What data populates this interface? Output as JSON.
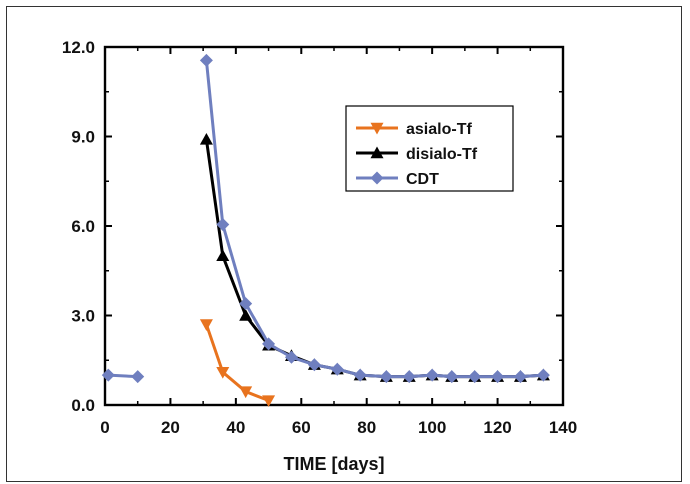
{
  "chart_data": {
    "type": "line",
    "title": "",
    "xlabel": "TIME [days]",
    "ylabel": "",
    "xlim": [
      0,
      140
    ],
    "ylim": [
      0,
      12
    ],
    "xticks": [
      0,
      20,
      40,
      60,
      80,
      100,
      120,
      140
    ],
    "yticks": [
      0,
      3,
      6,
      9,
      12
    ],
    "xtick_labels": [
      "0",
      "20",
      "40",
      "60",
      "80",
      "100",
      "120",
      "140"
    ],
    "ytick_labels": [
      "0.0",
      "3.0",
      "6.0",
      "9.0",
      "12.0"
    ],
    "grid": false,
    "legend_position": "top-right",
    "series": [
      {
        "name": "asialo-Tf",
        "color": "#e8731e",
        "marker": "triangle-down",
        "points": [
          [
            31,
            2.7
          ],
          [
            36,
            1.1
          ],
          [
            43,
            0.45
          ],
          [
            50,
            0.15
          ]
        ]
      },
      {
        "name": "disialo-Tf",
        "color": "#000000",
        "marker": "triangle-up",
        "points": [
          [
            31,
            8.9
          ],
          [
            36,
            5.0
          ],
          [
            43,
            3.0
          ],
          [
            50,
            2.0
          ],
          [
            57,
            1.65
          ],
          [
            64,
            1.35
          ],
          [
            71,
            1.2
          ],
          [
            78,
            1.0
          ],
          [
            86,
            0.95
          ],
          [
            93,
            0.95
          ],
          [
            100,
            1.0
          ],
          [
            106,
            0.95
          ],
          [
            113,
            0.95
          ],
          [
            120,
            0.95
          ],
          [
            127,
            0.95
          ],
          [
            134,
            1.0
          ]
        ]
      },
      {
        "name": "CDT",
        "color": "#6f7fbf",
        "marker": "diamond",
        "segments": [
          [
            [
              1,
              1.0
            ],
            [
              10,
              0.95
            ]
          ],
          [
            [
              31,
              11.55
            ],
            [
              36,
              6.05
            ],
            [
              43,
              3.4
            ],
            [
              50,
              2.05
            ],
            [
              57,
              1.6
            ],
            [
              64,
              1.35
            ],
            [
              71,
              1.2
            ],
            [
              78,
              1.0
            ],
            [
              86,
              0.95
            ],
            [
              93,
              0.95
            ],
            [
              100,
              1.0
            ],
            [
              106,
              0.95
            ],
            [
              113,
              0.95
            ],
            [
              120,
              0.95
            ],
            [
              127,
              0.95
            ],
            [
              134,
              1.0
            ]
          ]
        ]
      }
    ]
  }
}
